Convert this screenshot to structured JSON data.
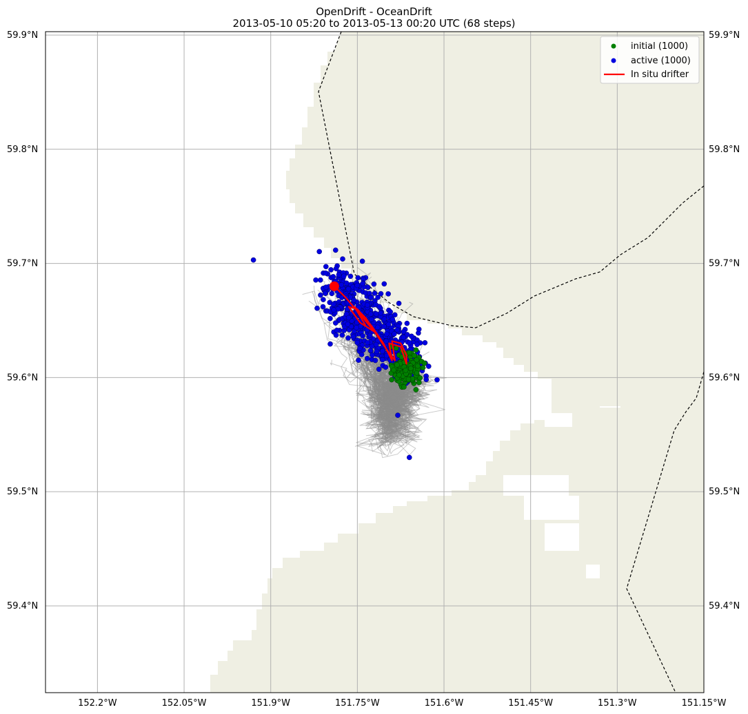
{
  "title": "OpenDrift - OceanDrift",
  "subtitle": "2013-05-10 05:20 to 2013-05-13 00:20 UTC (68 steps)",
  "colors": {
    "land": "#efefe3",
    "grid": "#b0b0b0",
    "tracks": "#8c8c8c",
    "initial": "#008000",
    "active": "#0000e0",
    "drifter": "#ff0000",
    "border": "#000000"
  },
  "legend": {
    "placement": "top-right",
    "items": [
      {
        "label": "initial (1000)",
        "marker": "dot",
        "color": "#008000"
      },
      {
        "label": "active (1000)",
        "marker": "dot",
        "color": "#0000e0"
      },
      {
        "label": "In situ drifter",
        "marker": "line",
        "color": "#ff0000"
      }
    ]
  },
  "chart_data": {
    "type": "scatter",
    "map": "particle trajectories over coastline",
    "xlim": [
      -152.29,
      -151.15
    ],
    "ylim": [
      59.324,
      59.903
    ],
    "x_ticks": [
      {
        "value": -152.2,
        "label": "152.2°W"
      },
      {
        "value": -152.05,
        "label": "152.05°W"
      },
      {
        "value": -151.9,
        "label": "151.9°W"
      },
      {
        "value": -151.75,
        "label": "151.75°W"
      },
      {
        "value": -151.6,
        "label": "151.6°W"
      },
      {
        "value": -151.45,
        "label": "151.45°W"
      },
      {
        "value": -151.3,
        "label": "151.3°W"
      },
      {
        "value": -151.15,
        "label": "151.15°W"
      }
    ],
    "y_ticks": [
      {
        "value": 59.9,
        "label": "59.9°N"
      },
      {
        "value": 59.8,
        "label": "59.8°N"
      },
      {
        "value": 59.7,
        "label": "59.7°N"
      },
      {
        "value": 59.6,
        "label": "59.6°N"
      },
      {
        "value": 59.5,
        "label": "59.5°N"
      },
      {
        "value": 59.4,
        "label": "59.4°N"
      }
    ],
    "grid": true,
    "initial_cluster": {
      "center_lon": -151.665,
      "center_lat": 59.607,
      "spread_lon": 0.016,
      "spread_lat": 0.009,
      "count": 1000
    },
    "drifter_start": {
      "lon": -151.79,
      "lat": 59.68
    },
    "drifter_track": [
      [
        -151.79,
        59.68
      ],
      [
        -151.77,
        59.67
      ],
      [
        -151.745,
        59.655
      ],
      [
        -151.72,
        59.64
      ],
      [
        -151.7,
        59.625
      ],
      [
        -151.685,
        59.615
      ],
      [
        -151.69,
        59.632
      ],
      [
        -151.675,
        59.63
      ],
      [
        -151.665,
        59.62
      ],
      [
        -151.665,
        59.612
      ],
      [
        -151.675,
        59.627
      ],
      [
        -151.695,
        59.63
      ],
      [
        -151.69,
        59.615
      ],
      [
        -151.705,
        59.63
      ],
      [
        -151.725,
        59.645
      ],
      [
        -151.75,
        59.66
      ],
      [
        -151.765,
        59.662
      ],
      [
        -151.745,
        59.648
      ],
      [
        -151.72,
        59.64
      ],
      [
        -151.735,
        59.652
      ],
      [
        -151.755,
        59.662
      ],
      [
        -151.735,
        59.645
      ]
    ],
    "active_outliers": [
      [
        -151.93,
        59.703
      ],
      [
        -151.66,
        59.53
      ],
      [
        -151.68,
        59.567
      ],
      [
        -151.612,
        59.598
      ]
    ]
  }
}
